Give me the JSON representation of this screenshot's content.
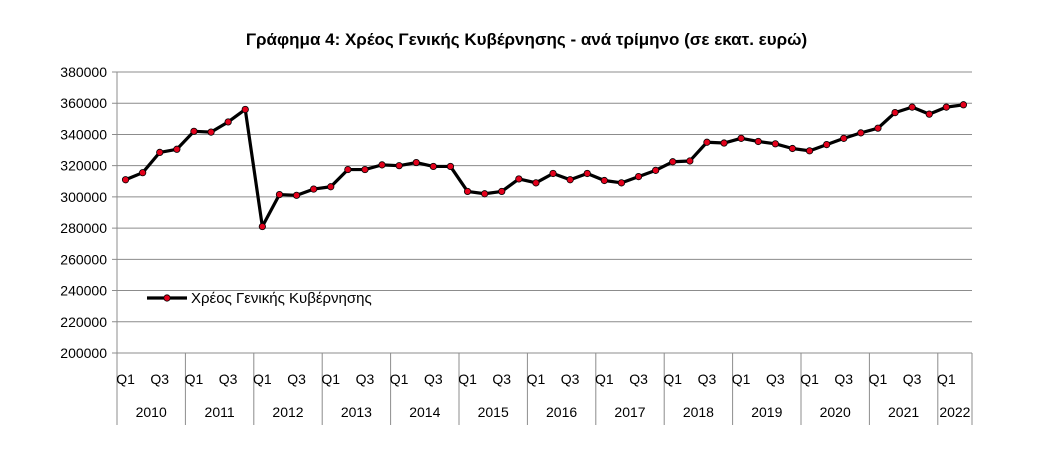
{
  "chart_data": {
    "type": "line",
    "title": "Γράφημα 4: Χρέος Γενικής Κυβέρνησης - ανά τρίμηνο (σε εκατ. ευρώ)",
    "xlabel": "",
    "ylabel": "",
    "ylim": [
      200000,
      380000
    ],
    "ytick_step": 20000,
    "yticks": [
      "200000",
      "220000",
      "240000",
      "260000",
      "280000",
      "300000",
      "320000",
      "340000",
      "360000",
      "380000"
    ],
    "grid": true,
    "legend_position": "left, lower-middle",
    "quarter_labels": [
      "Q1",
      "Q3"
    ],
    "years": [
      "2010",
      "2011",
      "2012",
      "2013",
      "2014",
      "2015",
      "2016",
      "2017",
      "2018",
      "2019",
      "2020",
      "2021",
      "2022"
    ],
    "x": [
      "2010-Q1",
      "2010-Q2",
      "2010-Q3",
      "2010-Q4",
      "2011-Q1",
      "2011-Q2",
      "2011-Q3",
      "2011-Q4",
      "2012-Q1",
      "2012-Q2",
      "2012-Q3",
      "2012-Q4",
      "2013-Q1",
      "2013-Q2",
      "2013-Q3",
      "2013-Q4",
      "2014-Q1",
      "2014-Q2",
      "2014-Q3",
      "2014-Q4",
      "2015-Q1",
      "2015-Q2",
      "2015-Q3",
      "2015-Q4",
      "2016-Q1",
      "2016-Q2",
      "2016-Q3",
      "2016-Q4",
      "2017-Q1",
      "2017-Q2",
      "2017-Q3",
      "2017-Q4",
      "2018-Q1",
      "2018-Q2",
      "2018-Q3",
      "2018-Q4",
      "2019-Q1",
      "2019-Q2",
      "2019-Q3",
      "2019-Q4",
      "2020-Q1",
      "2020-Q2",
      "2020-Q3",
      "2020-Q4",
      "2021-Q1",
      "2021-Q2",
      "2021-Q3",
      "2021-Q4",
      "2022-Q1",
      "2022-Q2"
    ],
    "series": [
      {
        "name": "Χρέος Γενικής Κυβέρνησης",
        "color": "#000000",
        "marker_color": "#e3001b",
        "values": [
          311000,
          315500,
          328500,
          330500,
          342000,
          341500,
          348000,
          356000,
          281000,
          301500,
          301000,
          305000,
          306500,
          317500,
          317500,
          320500,
          320000,
          322000,
          319500,
          319500,
          303500,
          302000,
          303500,
          311500,
          309000,
          315000,
          311000,
          315000,
          310500,
          309000,
          313000,
          317000,
          322500,
          323000,
          335000,
          334500,
          337500,
          335500,
          334000,
          331000,
          329500,
          333500,
          337500,
          341000,
          344000,
          354000,
          357500,
          353000,
          357500,
          359000
        ]
      }
    ]
  }
}
